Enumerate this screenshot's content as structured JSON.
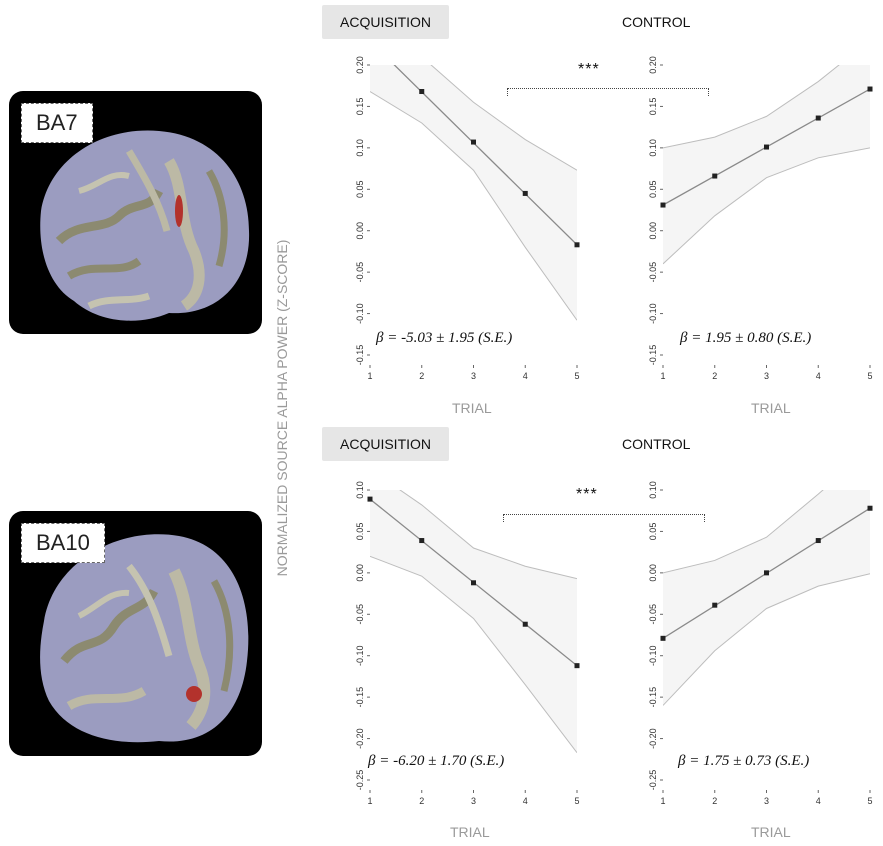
{
  "figure": {
    "y_axis_label": "NORMALIZED SOURCE ALPHA POWER (Z-SCORE)",
    "significance": "***"
  },
  "rows": [
    {
      "region": "BA7",
      "brain_tag": "BA7",
      "panels": [
        {
          "condition": "ACQUISITION",
          "xlabel": "TRIAL",
          "beta": "β = -5.03 ± 1.95 (S.E.)"
        },
        {
          "condition": "CONTROL",
          "xlabel": "TRIAL",
          "beta": "β = 1.95 ± 0.80 (S.E.)"
        }
      ]
    },
    {
      "region": "BA10",
      "brain_tag": "BA10",
      "panels": [
        {
          "condition": "ACQUISITION",
          "xlabel": "TRIAL",
          "beta": "β = -6.20 ± 1.70 (S.E.)"
        },
        {
          "condition": "CONTROL",
          "xlabel": "TRIAL",
          "beta": "β = 1.75 ± 0.73 (S.E.)"
        }
      ]
    }
  ],
  "chart_data": [
    {
      "type": "line",
      "title": "ACQUISITION",
      "xlabel": "TRIAL",
      "ylabel": "NORMALIZED SOURCE ALPHA POWER (Z-SCORE)",
      "x": [
        1,
        2,
        3,
        4,
        5
      ],
      "xlim": [
        1,
        5
      ],
      "ylim": [
        -0.15,
        0.2
      ],
      "yticks": [
        "-0.15",
        "-0.10",
        "-0.05",
        "0.00",
        "0.05",
        "0.10",
        "0.15",
        "0.20"
      ],
      "points_x": [
        2,
        3,
        4,
        5
      ],
      "points_y": [
        0.168,
        0.107,
        0.045,
        -0.017
      ],
      "fit": [
        [
          1,
          0.229
        ],
        [
          5,
          -0.017
        ]
      ],
      "ci_upper": [
        [
          1,
          0.26
        ],
        [
          2,
          0.21
        ],
        [
          3,
          0.155
        ],
        [
          4,
          0.11
        ],
        [
          5,
          0.073
        ]
      ],
      "ci_lower": [
        [
          1,
          0.168
        ],
        [
          2,
          0.13
        ],
        [
          3,
          0.073
        ],
        [
          4,
          -0.02
        ],
        [
          5,
          -0.108
        ]
      ],
      "annotation": "β = -5.03 ± 1.95 (S.E.)"
    },
    {
      "type": "line",
      "title": "CONTROL",
      "xlabel": "TRIAL",
      "x": [
        1,
        2,
        3,
        4,
        5
      ],
      "xlim": [
        1,
        5
      ],
      "ylim": [
        -0.15,
        0.2
      ],
      "yticks": [
        "-0.15",
        "-0.10",
        "-0.05",
        "0.00",
        "0.05",
        "0.10",
        "0.15",
        "0.20"
      ],
      "points_x": [
        1,
        2,
        3,
        4,
        5
      ],
      "points_y": [
        0.031,
        0.066,
        0.101,
        0.136,
        0.171
      ],
      "fit": [
        [
          1,
          0.031
        ],
        [
          5,
          0.171
        ]
      ],
      "ci_upper": [
        [
          1,
          0.1
        ],
        [
          2,
          0.113
        ],
        [
          3,
          0.138
        ],
        [
          4,
          0.18
        ],
        [
          5,
          0.23
        ]
      ],
      "ci_lower": [
        [
          1,
          -0.04
        ],
        [
          2,
          0.018
        ],
        [
          3,
          0.064
        ],
        [
          4,
          0.088
        ],
        [
          5,
          0.1
        ]
      ],
      "annotation": "β = 1.95 ± 0.80 (S.E.)"
    },
    {
      "type": "line",
      "title": "ACQUISITION",
      "xlabel": "TRIAL",
      "ylabel": "NORMALIZED SOURCE ALPHA POWER (Z-SCORE)",
      "x": [
        1,
        2,
        3,
        4,
        5
      ],
      "xlim": [
        1,
        5
      ],
      "ylim": [
        -0.25,
        0.1
      ],
      "yticks": [
        "-0.25",
        "-0.20",
        "-0.15",
        "-0.10",
        "-0.05",
        "0.00",
        "0.05",
        "0.10"
      ],
      "points_x": [
        1,
        2,
        3,
        4,
        5
      ],
      "points_y": [
        0.089,
        0.039,
        -0.012,
        -0.062,
        -0.112
      ],
      "fit": [
        [
          1,
          0.089
        ],
        [
          5,
          -0.112
        ]
      ],
      "ci_upper": [
        [
          1,
          0.125
        ],
        [
          2,
          0.082
        ],
        [
          3,
          0.03
        ],
        [
          4,
          0.008
        ],
        [
          5,
          -0.007
        ]
      ],
      "ci_lower": [
        [
          1,
          0.02
        ],
        [
          2,
          -0.004
        ],
        [
          3,
          -0.055
        ],
        [
          4,
          -0.135
        ],
        [
          5,
          -0.217
        ]
      ],
      "annotation": "β = -6.20 ± 1.70 (S.E.)"
    },
    {
      "type": "line",
      "title": "CONTROL",
      "xlabel": "TRIAL",
      "x": [
        1,
        2,
        3,
        4,
        5
      ],
      "xlim": [
        1,
        5
      ],
      "ylim": [
        -0.25,
        0.1
      ],
      "yticks": [
        "-0.25",
        "-0.20",
        "-0.15",
        "-0.10",
        "-0.05",
        "0.00",
        "0.05",
        "0.10"
      ],
      "points_x": [
        1,
        2,
        3,
        4,
        5
      ],
      "points_y": [
        -0.079,
        -0.039,
        0.0,
        0.039,
        0.078
      ],
      "fit": [
        [
          1,
          -0.079
        ],
        [
          5,
          0.078
        ]
      ],
      "ci_upper": [
        [
          1,
          0.0
        ],
        [
          2,
          0.015
        ],
        [
          3,
          0.043
        ],
        [
          4,
          0.095
        ],
        [
          5,
          0.15
        ]
      ],
      "ci_lower": [
        [
          1,
          -0.16
        ],
        [
          2,
          -0.094
        ],
        [
          3,
          -0.043
        ],
        [
          4,
          -0.016
        ],
        [
          5,
          -0.001
        ]
      ],
      "annotation": "β = 1.75 ± 0.73 (S.E.)"
    }
  ]
}
